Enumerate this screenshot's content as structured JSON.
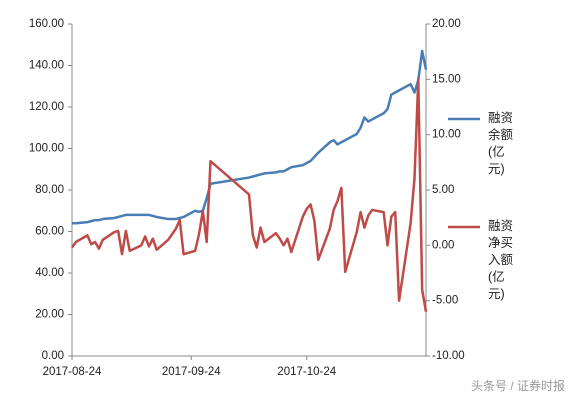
{
  "chart_data": {
    "type": "line",
    "x": [
      "2017-08-24",
      "2017-08-25",
      "2017-08-28",
      "2017-08-29",
      "2017-08-30",
      "2017-08-31",
      "2017-09-01",
      "2017-09-04",
      "2017-09-05",
      "2017-09-06",
      "2017-09-07",
      "2017-09-08",
      "2017-09-11",
      "2017-09-12",
      "2017-09-13",
      "2017-09-14",
      "2017-09-15",
      "2017-09-18",
      "2017-09-19",
      "2017-09-20",
      "2017-09-21",
      "2017-09-22",
      "2017-09-25",
      "2017-09-26",
      "2017-09-27",
      "2017-09-28",
      "2017-09-29",
      "2017-10-09",
      "2017-10-10",
      "2017-10-11",
      "2017-10-12",
      "2017-10-13",
      "2017-10-16",
      "2017-10-17",
      "2017-10-18",
      "2017-10-19",
      "2017-10-20",
      "2017-10-23",
      "2017-10-24",
      "2017-10-25",
      "2017-10-26",
      "2017-10-27",
      "2017-10-30",
      "2017-10-31",
      "2017-11-01",
      "2017-11-02",
      "2017-11-03",
      "2017-11-06",
      "2017-11-07",
      "2017-11-08",
      "2017-11-09",
      "2017-11-10",
      "2017-11-13",
      "2017-11-14",
      "2017-11-15",
      "2017-11-16",
      "2017-11-17",
      "2017-11-20",
      "2017-11-21",
      "2017-11-22",
      "2017-11-23",
      "2017-11-24"
    ],
    "xlim": [
      "2017-08-24",
      "2017-11-24"
    ],
    "xticks": [
      "2017-08-24",
      "2017-09-24",
      "2017-10-24"
    ],
    "ylim": [
      0,
      160
    ],
    "yticks": [
      {
        "value": 0,
        "label": "0.00"
      },
      {
        "value": 20,
        "label": "20.00"
      },
      {
        "value": 40,
        "label": "40.00"
      },
      {
        "value": 60,
        "label": "60.00"
      },
      {
        "value": 80,
        "label": "80.00"
      },
      {
        "value": 100,
        "label": "100.00"
      },
      {
        "value": 120,
        "label": "120.00"
      },
      {
        "value": 140,
        "label": "140.00"
      },
      {
        "value": 160,
        "label": "160.00"
      }
    ],
    "y2lim": [
      -10,
      20
    ],
    "y2ticks": [
      {
        "value": -10,
        "label": "-10.00"
      },
      {
        "value": -5,
        "label": "-5.00"
      },
      {
        "value": 0,
        "label": "0.00"
      },
      {
        "value": 5,
        "label": "5.00"
      },
      {
        "value": 10,
        "label": "10.00"
      },
      {
        "value": 15,
        "label": "15.00"
      },
      {
        "value": 20,
        "label": "20.00"
      }
    ],
    "series": [
      {
        "name": "融资余额(亿元)",
        "color": "#4a7db5",
        "values": [
          64,
          64,
          64.5,
          65,
          65.5,
          65.5,
          66,
          66.5,
          67,
          67.5,
          68,
          68,
          68,
          68,
          68,
          67.5,
          67,
          66,
          66,
          66,
          66.5,
          67,
          70,
          69.5,
          70,
          76,
          83,
          86,
          86.5,
          87,
          87.5,
          88,
          88.5,
          89,
          89,
          90,
          91,
          92,
          93,
          94,
          96,
          98,
          103,
          104,
          102,
          103,
          104,
          107,
          110,
          115,
          113,
          114,
          117,
          119,
          126,
          127,
          128,
          131,
          127,
          133,
          147,
          138
        ]
      },
      {
        "name": "融资净买入额(亿元)",
        "color": "#be4b48",
        "axis": "y2",
        "values": [
          -0.2,
          0.3,
          0.9,
          0.1,
          0.3,
          -0.3,
          0.5,
          1.2,
          1.3,
          -0.8,
          1.3,
          -0.5,
          0.0,
          0.8,
          -0.1,
          0.6,
          -0.4,
          0.5,
          1.0,
          1.5,
          2.3,
          -0.8,
          -0.5,
          1.0,
          3.1,
          0.3,
          7.6,
          4.6,
          0.9,
          -0.2,
          1.6,
          0.3,
          1.1,
          0.6,
          0.0,
          0.6,
          -0.6,
          2.6,
          3.3,
          3.7,
          2.2,
          -1.3,
          1.5,
          3.2,
          4.0,
          5.2,
          -2.4,
          1.2,
          3.0,
          1.6,
          2.7,
          3.2,
          3.0,
          0.0,
          2.6,
          3.0,
          -5.0,
          2.0,
          6.0,
          15.0,
          -4.0,
          -6.0
        ]
      }
    ],
    "grid": false,
    "legend": "right",
    "watermark": "头条号 / 证券时报"
  }
}
